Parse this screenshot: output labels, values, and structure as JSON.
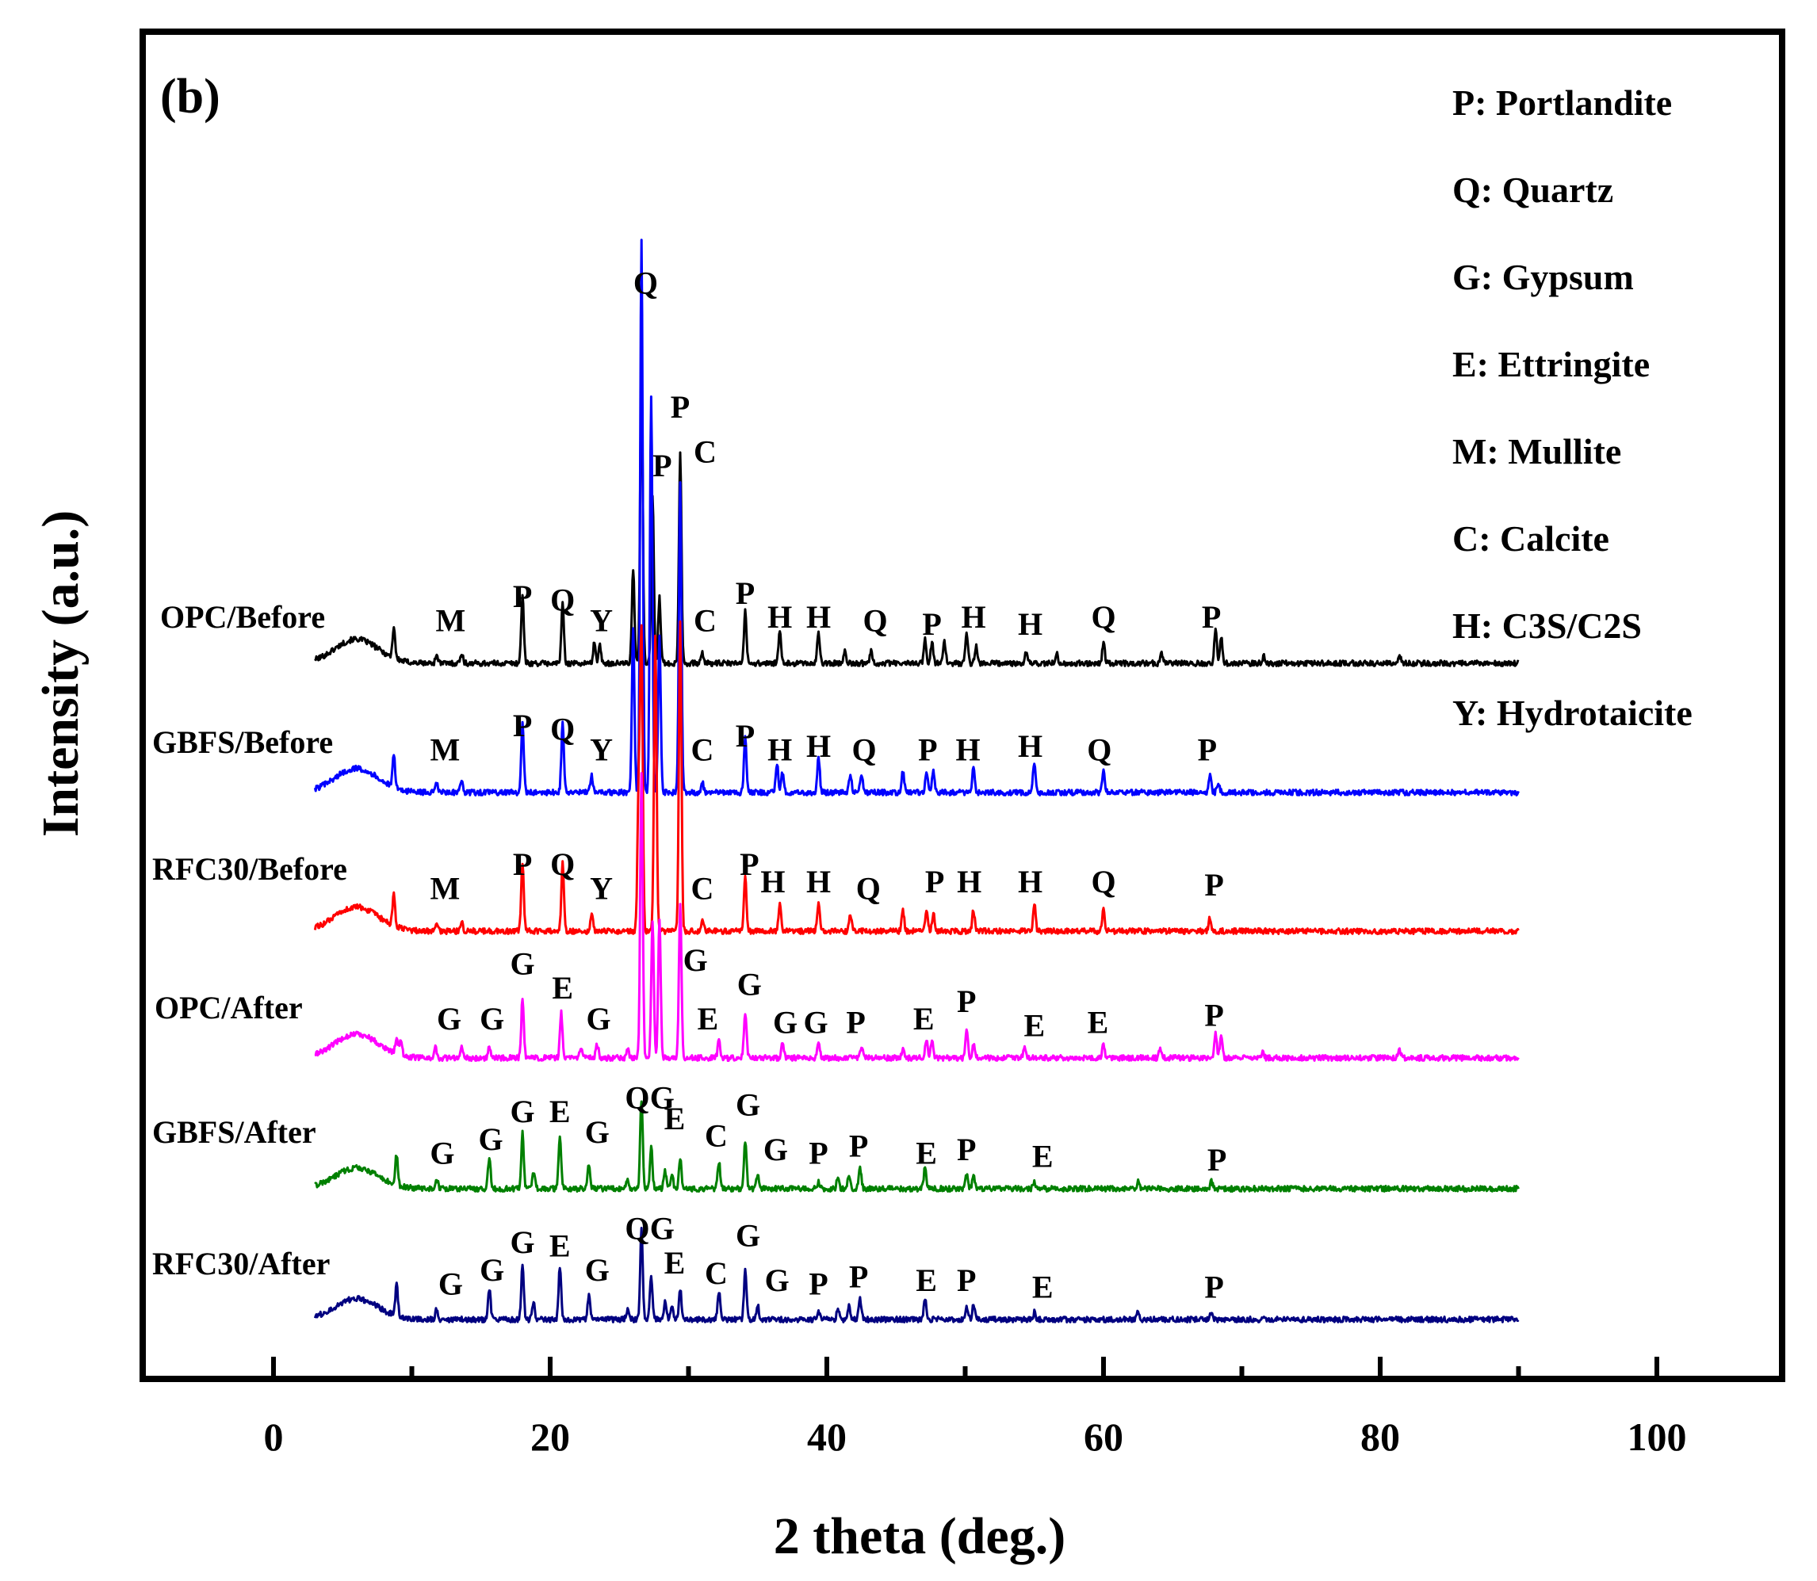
{
  "chart_data": {
    "type": "line",
    "panel_label": "(b)",
    "xlabel": "2 theta (deg.)",
    "ylabel": "Intensity (a.u.)",
    "xlim": [
      -10,
      110
    ],
    "x_ticks": [
      0,
      20,
      40,
      60,
      80,
      100
    ],
    "x_tick_labels": [
      "0",
      "20",
      "40",
      "60",
      "80",
      "100"
    ],
    "y_ticks_shown": false,
    "legend_position": "top-right",
    "legend": [
      "P: Portlandite",
      "Q: Quartz",
      "G: Gypsum",
      "E: Ettringite",
      "M: Mullite",
      "C: Calcite",
      "H: C3S/C2S",
      "Y: Hydrotaicite"
    ],
    "series": [
      {
        "name": "OPC/Before",
        "color": "#000000",
        "baseline": 0.0,
        "background_hump": 0.7,
        "peaks": [
          [
            8.7,
            0.9
          ],
          [
            11.8,
            0.25
          ],
          [
            13.6,
            0.3
          ],
          [
            18.0,
            2.0
          ],
          [
            20.9,
            1.7
          ],
          [
            23.2,
            0.6
          ],
          [
            23.6,
            0.5
          ],
          [
            26.0,
            2.7
          ],
          [
            26.6,
            8.6
          ],
          [
            27.4,
            4.9
          ],
          [
            27.9,
            1.9
          ],
          [
            29.4,
            6.1
          ],
          [
            31.0,
            0.3
          ],
          [
            34.1,
            1.5
          ],
          [
            36.6,
            0.9
          ],
          [
            39.4,
            0.9
          ],
          [
            41.3,
            0.4
          ],
          [
            43.2,
            0.4
          ],
          [
            47.1,
            0.7
          ],
          [
            47.6,
            0.6
          ],
          [
            48.5,
            0.6
          ],
          [
            50.1,
            0.9
          ],
          [
            50.8,
            0.5
          ],
          [
            54.4,
            0.3
          ],
          [
            56.6,
            0.3
          ],
          [
            60.0,
            0.6
          ],
          [
            64.2,
            0.3
          ],
          [
            68.1,
            1.0
          ],
          [
            68.5,
            0.8
          ],
          [
            71.6,
            0.2
          ],
          [
            81.4,
            0.2
          ]
        ],
        "annotations": [
          [
            12.8,
            "M"
          ],
          [
            18.0,
            "P"
          ],
          [
            20.9,
            "Q"
          ],
          [
            23.7,
            "Y"
          ],
          [
            26.9,
            "Q"
          ],
          [
            28.1,
            "P"
          ],
          [
            29.4,
            "P"
          ],
          [
            31.2,
            "C"
          ],
          [
            31.2,
            "C"
          ],
          [
            34.1,
            "P"
          ],
          [
            36.6,
            "H"
          ],
          [
            39.4,
            "H"
          ],
          [
            43.5,
            "Q"
          ],
          [
            47.6,
            "P"
          ],
          [
            50.6,
            "H"
          ],
          [
            54.7,
            "H"
          ],
          [
            60.0,
            "Q"
          ],
          [
            67.8,
            "P"
          ]
        ],
        "label_y": [
          0.7,
          1.4,
          1.3,
          0.7,
          10.5,
          5.2,
          6.9,
          5.6,
          0.7,
          1.5,
          0.8,
          0.8,
          0.7,
          0.6,
          0.8,
          0.6,
          0.8,
          0.8
        ]
      },
      {
        "name": "GBFS/Before",
        "color": "#0000ff",
        "baseline": 0.0,
        "background_hump": 0.7,
        "peaks": [
          [
            8.7,
            0.9
          ],
          [
            11.8,
            0.25
          ],
          [
            13.6,
            0.3
          ],
          [
            18.0,
            2.0
          ],
          [
            20.9,
            2.0
          ],
          [
            23.0,
            0.5
          ],
          [
            26.0,
            4.8
          ],
          [
            26.6,
            16.0
          ],
          [
            27.3,
            11.5
          ],
          [
            27.9,
            4.5
          ],
          [
            29.4,
            9.0
          ],
          [
            31.0,
            0.3
          ],
          [
            34.1,
            1.6
          ],
          [
            36.4,
            0.8
          ],
          [
            36.8,
            0.6
          ],
          [
            39.4,
            1.0
          ],
          [
            41.7,
            0.5
          ],
          [
            42.5,
            0.5
          ],
          [
            45.5,
            0.6
          ],
          [
            47.2,
            0.6
          ],
          [
            47.7,
            0.6
          ],
          [
            50.6,
            0.8
          ],
          [
            55.0,
            0.9
          ],
          [
            60.0,
            0.7
          ],
          [
            67.7,
            0.5
          ],
          [
            68.3,
            0.3
          ]
        ],
        "annotations": [
          [
            12.4,
            "M"
          ],
          [
            18.0,
            "P"
          ],
          [
            20.9,
            "Q"
          ],
          [
            23.7,
            "Y"
          ],
          [
            31.0,
            "C"
          ],
          [
            34.1,
            "P"
          ],
          [
            36.6,
            "H"
          ],
          [
            39.4,
            "H"
          ],
          [
            42.7,
            "Q"
          ],
          [
            47.3,
            "P"
          ],
          [
            50.2,
            "H"
          ],
          [
            54.7,
            "H"
          ],
          [
            59.7,
            "Q"
          ],
          [
            67.5,
            "P"
          ]
        ],
        "label_y": [
          0.7,
          1.4,
          1.3,
          0.7,
          0.7,
          1.1,
          0.7,
          0.8,
          0.7,
          0.7,
          0.7,
          0.8,
          0.7,
          0.7
        ]
      },
      {
        "name": "RFC30/Before",
        "color": "#ff0000",
        "baseline": 0.0,
        "background_hump": 0.7,
        "peaks": [
          [
            8.7,
            0.9
          ],
          [
            11.8,
            0.25
          ],
          [
            13.6,
            0.3
          ],
          [
            18.0,
            2.0
          ],
          [
            20.9,
            2.0
          ],
          [
            23.0,
            0.5
          ],
          [
            26.4,
            4.0
          ],
          [
            26.6,
            8.5
          ],
          [
            27.6,
            8.5
          ],
          [
            29.4,
            9.0
          ],
          [
            31.0,
            0.3
          ],
          [
            34.1,
            1.6
          ],
          [
            36.6,
            0.8
          ],
          [
            39.4,
            0.8
          ],
          [
            41.7,
            0.5
          ],
          [
            45.5,
            0.6
          ],
          [
            47.2,
            0.6
          ],
          [
            47.7,
            0.5
          ],
          [
            50.6,
            0.6
          ],
          [
            55.0,
            0.8
          ],
          [
            60.0,
            0.6
          ],
          [
            67.7,
            0.4
          ]
        ],
        "annotations": [
          [
            12.4,
            "M"
          ],
          [
            18.0,
            "P"
          ],
          [
            20.9,
            "Q"
          ],
          [
            23.7,
            "Y"
          ],
          [
            31.0,
            "C"
          ],
          [
            34.4,
            "P"
          ],
          [
            36.1,
            "H"
          ],
          [
            39.4,
            "H"
          ],
          [
            43.0,
            "Q"
          ],
          [
            47.8,
            "P"
          ],
          [
            50.3,
            "H"
          ],
          [
            54.7,
            "H"
          ],
          [
            60.0,
            "Q"
          ],
          [
            68.0,
            "P"
          ]
        ],
        "label_y": [
          0.7,
          1.4,
          1.4,
          0.7,
          0.7,
          1.4,
          0.9,
          0.9,
          0.7,
          0.9,
          0.9,
          0.9,
          0.9,
          0.8
        ]
      },
      {
        "name": "OPC/After",
        "color": "#ff00ff",
        "baseline": 0.0,
        "background_hump": 0.7,
        "peaks": [
          [
            8.9,
            0.5
          ],
          [
            9.2,
            0.4
          ],
          [
            11.7,
            0.3
          ],
          [
            13.6,
            0.3
          ],
          [
            15.6,
            0.3
          ],
          [
            18.0,
            1.7
          ],
          [
            20.8,
            1.3
          ],
          [
            22.2,
            0.3
          ],
          [
            23.4,
            0.4
          ],
          [
            25.6,
            0.3
          ],
          [
            26.6,
            8.3
          ],
          [
            27.4,
            4.0
          ],
          [
            27.9,
            4.0
          ],
          [
            29.4,
            4.5
          ],
          [
            32.2,
            0.5
          ],
          [
            34.1,
            1.3
          ],
          [
            36.8,
            0.4
          ],
          [
            39.4,
            0.4
          ],
          [
            42.5,
            0.3
          ],
          [
            45.5,
            0.3
          ],
          [
            47.2,
            0.5
          ],
          [
            47.6,
            0.5
          ],
          [
            50.1,
            0.8
          ],
          [
            50.6,
            0.4
          ],
          [
            54.3,
            0.3
          ],
          [
            60.0,
            0.4
          ],
          [
            64.1,
            0.3
          ],
          [
            68.1,
            0.7
          ],
          [
            68.5,
            0.6
          ],
          [
            71.5,
            0.2
          ],
          [
            81.4,
            0.2
          ]
        ],
        "annotations": [
          [
            12.7,
            "G"
          ],
          [
            15.8,
            "G"
          ],
          [
            18.0,
            "G"
          ],
          [
            20.9,
            "E"
          ],
          [
            23.5,
            "G"
          ],
          [
            30.5,
            "G"
          ],
          [
            31.4,
            "E"
          ],
          [
            34.4,
            "G"
          ],
          [
            37.0,
            "G"
          ],
          [
            39.2,
            "G"
          ],
          [
            42.1,
            "P"
          ],
          [
            47.0,
            "E"
          ],
          [
            50.1,
            "P"
          ],
          [
            55.0,
            "E"
          ],
          [
            59.6,
            "E"
          ],
          [
            68.0,
            "P"
          ]
        ],
        "label_y": [
          0.6,
          0.6,
          2.2,
          1.5,
          0.6,
          2.3,
          0.6,
          1.6,
          0.5,
          0.5,
          0.5,
          0.6,
          1.1,
          0.4,
          0.5,
          0.7
        ]
      },
      {
        "name": "GBFS/After",
        "color": "#008000",
        "baseline": 0.0,
        "background_hump": 0.6,
        "peaks": [
          [
            8.9,
            0.9
          ],
          [
            11.8,
            0.3
          ],
          [
            15.6,
            0.9
          ],
          [
            18.0,
            1.6
          ],
          [
            18.8,
            0.5
          ],
          [
            20.7,
            1.5
          ],
          [
            22.8,
            0.7
          ],
          [
            25.6,
            0.3
          ],
          [
            26.6,
            2.6
          ],
          [
            27.3,
            1.2
          ],
          [
            28.3,
            0.5
          ],
          [
            28.8,
            0.4
          ],
          [
            29.4,
            0.9
          ],
          [
            32.2,
            0.8
          ],
          [
            34.1,
            1.4
          ],
          [
            35.0,
            0.4
          ],
          [
            39.4,
            0.2
          ],
          [
            40.8,
            0.3
          ],
          [
            41.6,
            0.4
          ],
          [
            42.4,
            0.6
          ],
          [
            47.1,
            0.6
          ],
          [
            50.1,
            0.4
          ],
          [
            50.6,
            0.4
          ],
          [
            55.0,
            0.2
          ],
          [
            62.5,
            0.2
          ],
          [
            67.8,
            0.2
          ]
        ],
        "annotations": [
          [
            12.2,
            "G"
          ],
          [
            15.7,
            "G"
          ],
          [
            18.0,
            "G"
          ],
          [
            20.7,
            "E"
          ],
          [
            23.4,
            "G"
          ],
          [
            26.3,
            "Q"
          ],
          [
            28.1,
            "G"
          ],
          [
            29.0,
            "E"
          ],
          [
            32.0,
            "C"
          ],
          [
            34.3,
            "G"
          ],
          [
            36.3,
            "G"
          ],
          [
            39.4,
            "P"
          ],
          [
            42.3,
            "P"
          ],
          [
            47.2,
            "E"
          ],
          [
            50.1,
            "P"
          ],
          [
            55.6,
            "E"
          ],
          [
            68.2,
            "P"
          ]
        ],
        "label_y": [
          0.5,
          0.9,
          1.7,
          1.7,
          1.1,
          2.1,
          2.1,
          1.5,
          1.0,
          1.9,
          0.6,
          0.5,
          0.7,
          0.5,
          0.6,
          0.4,
          0.3
        ]
      },
      {
        "name": "RFC30/After",
        "color": "#000080",
        "baseline": 0.0,
        "background_hump": 0.6,
        "peaks": [
          [
            8.9,
            0.9
          ],
          [
            11.8,
            0.3
          ],
          [
            15.6,
            0.9
          ],
          [
            18.0,
            1.6
          ],
          [
            18.8,
            0.5
          ],
          [
            20.7,
            1.5
          ],
          [
            22.8,
            0.7
          ],
          [
            25.6,
            0.3
          ],
          [
            26.6,
            2.6
          ],
          [
            27.3,
            1.2
          ],
          [
            28.3,
            0.5
          ],
          [
            28.8,
            0.4
          ],
          [
            29.4,
            0.9
          ],
          [
            32.2,
            0.8
          ],
          [
            34.1,
            1.4
          ],
          [
            35.0,
            0.4
          ],
          [
            39.4,
            0.2
          ],
          [
            40.8,
            0.3
          ],
          [
            41.6,
            0.4
          ],
          [
            42.4,
            0.6
          ],
          [
            47.1,
            0.6
          ],
          [
            50.1,
            0.4
          ],
          [
            50.6,
            0.4
          ],
          [
            55.0,
            0.2
          ],
          [
            62.5,
            0.2
          ],
          [
            67.8,
            0.2
          ]
        ],
        "annotations": [
          [
            12.8,
            "G"
          ],
          [
            15.8,
            "G"
          ],
          [
            18.0,
            "G"
          ],
          [
            20.7,
            "E"
          ],
          [
            23.4,
            "G"
          ],
          [
            26.3,
            "Q"
          ],
          [
            28.1,
            "G"
          ],
          [
            29.0,
            "E"
          ],
          [
            32.0,
            "C"
          ],
          [
            34.3,
            "G"
          ],
          [
            36.4,
            "G"
          ],
          [
            39.4,
            "P"
          ],
          [
            42.3,
            "P"
          ],
          [
            47.2,
            "E"
          ],
          [
            50.1,
            "P"
          ],
          [
            55.6,
            "E"
          ],
          [
            68.0,
            "P"
          ]
        ],
        "label_y": [
          0.5,
          0.9,
          1.7,
          1.6,
          0.9,
          2.1,
          2.1,
          1.1,
          0.8,
          1.9,
          0.6,
          0.5,
          0.7,
          0.6,
          0.6,
          0.4,
          0.4
        ]
      }
    ]
  }
}
